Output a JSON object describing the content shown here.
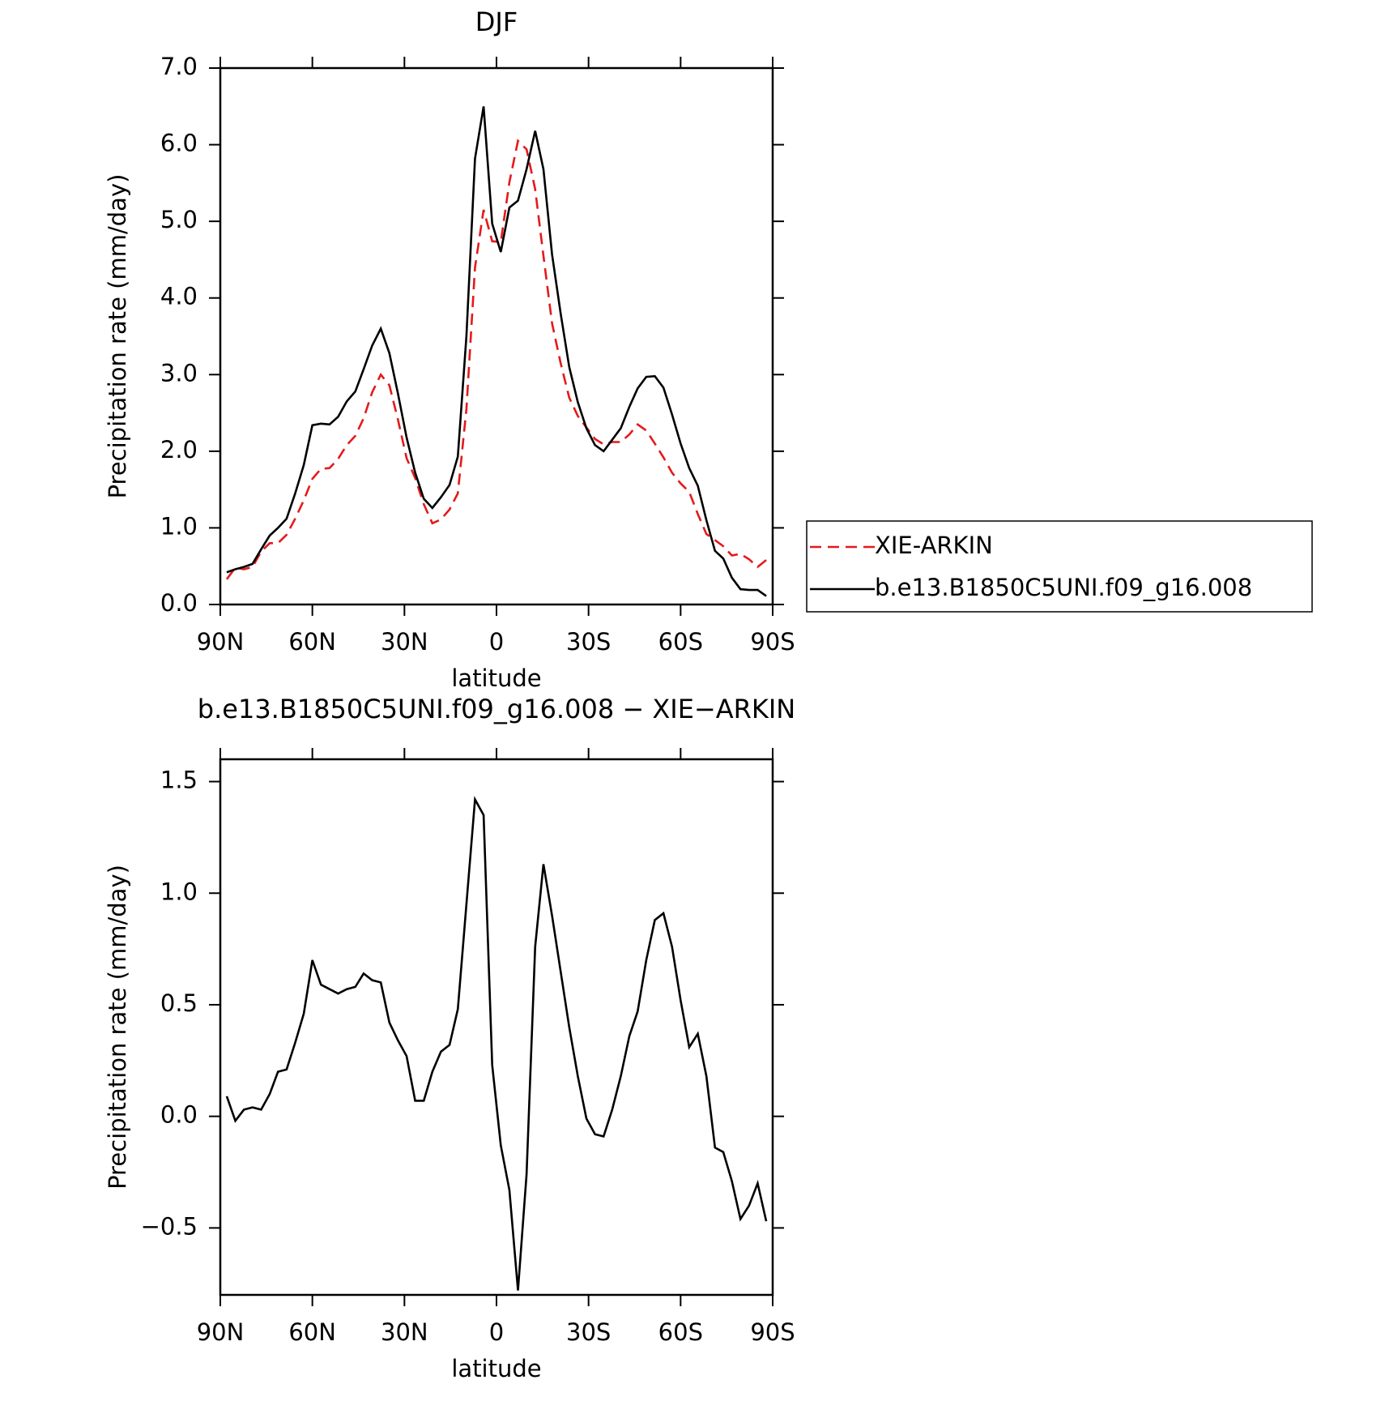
{
  "chart_data": [
    {
      "type": "line",
      "title": "DJF",
      "xlabel": "latitude",
      "ylabel": "Precipitation rate (mm/day)",
      "x": [
        87.9,
        85.1,
        82.3,
        79.5,
        76.7,
        73.9,
        71.2,
        68.4,
        65.6,
        62.8,
        60.0,
        57.2,
        54.4,
        51.6,
        48.8,
        46.0,
        43.3,
        40.5,
        37.7,
        34.9,
        32.1,
        29.3,
        26.5,
        23.7,
        20.9,
        18.1,
        15.3,
        12.6,
        9.8,
        7.0,
        4.2,
        1.4,
        -1.4,
        -4.2,
        -7.0,
        -9.8,
        -12.6,
        -15.3,
        -18.1,
        -20.9,
        -23.7,
        -26.5,
        -29.3,
        -32.1,
        -34.9,
        -37.7,
        -40.5,
        -43.3,
        -46.0,
        -48.8,
        -51.6,
        -54.4,
        -57.2,
        -60.0,
        -62.8,
        -65.6,
        -68.4,
        -71.2,
        -73.9,
        -76.7,
        -79.5,
        -82.3,
        -85.1,
        -87.9
      ],
      "series": [
        {
          "name": "XIE-ARKIN",
          "color": "#e41a1c",
          "dashed": true,
          "values": [
            0.33,
            0.48,
            0.46,
            0.49,
            0.69,
            0.8,
            0.8,
            0.91,
            1.12,
            1.36,
            1.64,
            1.77,
            1.78,
            1.9,
            2.08,
            2.2,
            2.43,
            2.77,
            3.0,
            2.86,
            2.41,
            1.91,
            1.65,
            1.31,
            1.06,
            1.11,
            1.24,
            1.45,
            2.55,
            4.4,
            5.15,
            4.74,
            4.73,
            5.51,
            6.05,
            5.94,
            5.42,
            4.55,
            3.67,
            3.15,
            2.7,
            2.46,
            2.31,
            2.16,
            2.09,
            2.12,
            2.12,
            2.22,
            2.35,
            2.27,
            2.1,
            1.92,
            1.72,
            1.58,
            1.47,
            1.18,
            0.92,
            0.84,
            0.76,
            0.64,
            0.66,
            0.59,
            0.49,
            0.58
          ]
        },
        {
          "name": "b.e13.B1850C5UNI.f09_g16.008",
          "color": "#000000",
          "dashed": false,
          "values": [
            0.42,
            0.46,
            0.49,
            0.53,
            0.72,
            0.9,
            1.0,
            1.12,
            1.45,
            1.82,
            2.34,
            2.36,
            2.35,
            2.45,
            2.65,
            2.78,
            3.07,
            3.38,
            3.6,
            3.28,
            2.75,
            2.18,
            1.72,
            1.38,
            1.26,
            1.4,
            1.56,
            1.93,
            3.5,
            5.82,
            6.5,
            4.97,
            4.6,
            5.18,
            5.27,
            5.68,
            6.18,
            5.68,
            4.57,
            3.8,
            3.1,
            2.64,
            2.3,
            2.08,
            2.0,
            2.15,
            2.3,
            2.58,
            2.82,
            2.97,
            2.98,
            2.83,
            2.48,
            2.1,
            1.78,
            1.55,
            1.1,
            0.7,
            0.6,
            0.35,
            0.2,
            0.19,
            0.19,
            0.11
          ]
        }
      ],
      "xlim": [
        90,
        -90
      ],
      "xticks": [
        {
          "value": 90,
          "label": "90N"
        },
        {
          "value": 60,
          "label": "60N"
        },
        {
          "value": 30,
          "label": "30N"
        },
        0,
        {
          "value": -30,
          "label": "30S"
        },
        {
          "value": -60,
          "label": "60S"
        },
        {
          "value": -90,
          "label": "90S"
        }
      ],
      "ylim": [
        0,
        7
      ],
      "yticks": [
        {
          "value": 0,
          "label": "0.0"
        },
        {
          "value": 1,
          "label": "1.0"
        },
        {
          "value": 2,
          "label": "2.0"
        },
        {
          "value": 3,
          "label": "3.0"
        },
        {
          "value": 4,
          "label": "4.0"
        },
        {
          "value": 5,
          "label": "5.0"
        },
        {
          "value": 6,
          "label": "6.0"
        },
        {
          "value": 7,
          "label": "7.0"
        }
      ],
      "legend": "right"
    },
    {
      "type": "line",
      "title": "b.e13.B1850C5UNI.f09_g16.008 − XIE−ARKIN",
      "xlabel": "latitude",
      "ylabel": "Precipitation rate (mm/day)",
      "x": [
        87.9,
        85.1,
        82.3,
        79.5,
        76.7,
        73.9,
        71.2,
        68.4,
        65.6,
        62.8,
        60.0,
        57.2,
        54.4,
        51.6,
        48.8,
        46.0,
        43.3,
        40.5,
        37.7,
        34.9,
        32.1,
        29.3,
        26.5,
        23.7,
        20.9,
        18.1,
        15.3,
        12.6,
        9.8,
        7.0,
        4.2,
        1.4,
        -1.4,
        -4.2,
        -7.0,
        -9.8,
        -12.6,
        -15.3,
        -18.1,
        -20.9,
        -23.7,
        -26.5,
        -29.3,
        -32.1,
        -34.9,
        -37.7,
        -40.5,
        -43.3,
        -46.0,
        -48.8,
        -51.6,
        -54.4,
        -57.2,
        -60.0,
        -62.8,
        -65.6,
        -68.4,
        -71.2,
        -73.9,
        -76.7,
        -79.5,
        -82.3,
        -85.1,
        -87.9
      ],
      "color": "#000000",
      "values": [
        0.09,
        -0.02,
        0.03,
        0.04,
        0.03,
        0.1,
        0.2,
        0.21,
        0.33,
        0.46,
        0.7,
        0.59,
        0.57,
        0.55,
        0.57,
        0.58,
        0.64,
        0.61,
        0.6,
        0.42,
        0.34,
        0.27,
        0.07,
        0.07,
        0.2,
        0.29,
        0.32,
        0.48,
        0.95,
        1.42,
        1.35,
        0.23,
        -0.13,
        -0.33,
        -0.78,
        -0.26,
        0.76,
        1.13,
        0.9,
        0.65,
        0.4,
        0.18,
        -0.01,
        -0.08,
        -0.09,
        0.03,
        0.18,
        0.36,
        0.47,
        0.7,
        0.88,
        0.91,
        0.76,
        0.52,
        0.31,
        0.37,
        0.18,
        -0.14,
        -0.16,
        -0.29,
        -0.46,
        -0.4,
        -0.3,
        -0.47
      ],
      "xlim": [
        90,
        -90
      ],
      "xticks": [
        {
          "value": 90,
          "label": "90N"
        },
        {
          "value": 60,
          "label": "60N"
        },
        {
          "value": 30,
          "label": "30N"
        },
        0,
        {
          "value": -30,
          "label": "30S"
        },
        {
          "value": -60,
          "label": "60S"
        },
        {
          "value": -90,
          "label": "90S"
        }
      ],
      "ylim": [
        -0.8,
        1.6
      ],
      "yticks": [
        {
          "value": -0.5,
          "label": "−0.5"
        },
        {
          "value": 0,
          "label": "0.0"
        },
        0.5,
        {
          "value": 1,
          "label": "1.0"
        },
        1.5
      ]
    }
  ]
}
